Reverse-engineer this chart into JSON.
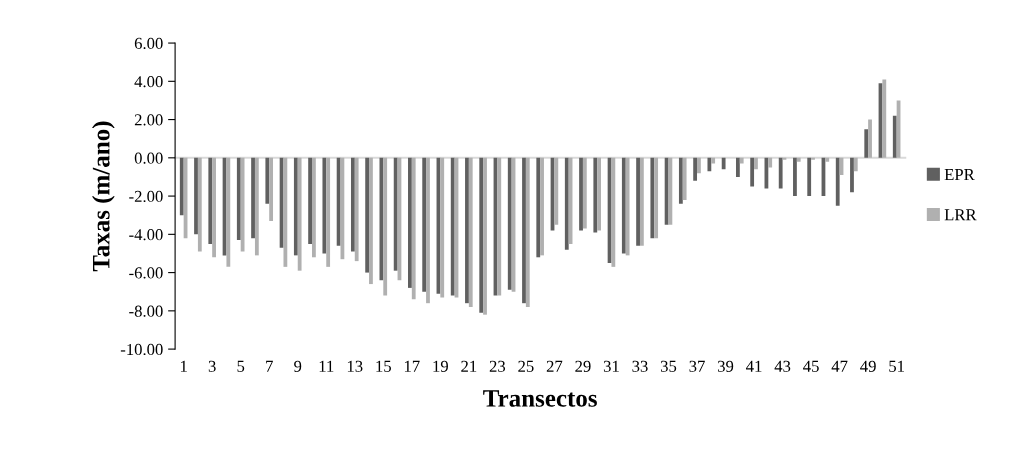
{
  "chart_data": {
    "type": "bar",
    "xlabel": "Transectos",
    "ylabel": "Taxas (m/ano)",
    "categories": [
      "1",
      null,
      "3",
      null,
      "5",
      null,
      "7",
      null,
      "9",
      null,
      "11",
      null,
      "13",
      null,
      "15",
      null,
      "17",
      null,
      "19",
      null,
      "21",
      null,
      "23",
      null,
      "25",
      null,
      "27",
      null,
      "29",
      null,
      "31",
      null,
      "33",
      null,
      "35",
      null,
      "37",
      null,
      "39",
      null,
      "41",
      null,
      "43",
      null,
      "45",
      null,
      "47",
      null,
      "49",
      null,
      "51"
    ],
    "series": [
      {
        "name": "EPR",
        "color": "#606060",
        "values": [
          -3.0,
          -4.0,
          -4.5,
          -5.1,
          -4.3,
          -4.2,
          -2.4,
          -4.7,
          -5.1,
          -4.5,
          -5.0,
          -4.6,
          -4.9,
          -6.0,
          -6.4,
          -5.9,
          -6.8,
          -7.0,
          -7.1,
          -7.2,
          -7.6,
          -8.1,
          -7.2,
          -6.9,
          -7.6,
          -5.2,
          -3.8,
          -4.8,
          -3.8,
          -3.9,
          -5.5,
          -5.0,
          -4.6,
          -4.2,
          -3.5,
          -2.4,
          -1.2,
          -0.7,
          -0.6,
          -1.0,
          -1.5,
          -1.6,
          -1.6,
          -2.0,
          -2.0,
          -2.0,
          -2.5,
          -1.8,
          1.5,
          3.9,
          2.2
        ]
      },
      {
        "name": "LRR",
        "color": "#b0b0b0",
        "values": [
          -4.2,
          -4.9,
          -5.2,
          -5.7,
          -4.9,
          -5.1,
          -3.3,
          -5.7,
          -5.9,
          -5.2,
          -5.7,
          -5.3,
          -5.4,
          -6.6,
          -7.2,
          -6.4,
          -7.4,
          -7.6,
          -7.3,
          -7.3,
          -7.8,
          -8.2,
          -7.2,
          -7.0,
          -7.8,
          -5.1,
          -3.5,
          -4.5,
          -3.7,
          -3.8,
          -5.7,
          -5.1,
          -4.6,
          -4.2,
          -3.5,
          -2.2,
          -0.8,
          -0.3,
          0.0,
          -0.3,
          -0.6,
          -0.5,
          -0.1,
          -0.2,
          -0.1,
          -0.2,
          -0.9,
          -0.7,
          2.0,
          4.1,
          3.0
        ]
      }
    ],
    "ylim": [
      -10,
      6
    ],
    "yticks": [
      {
        "value": -10,
        "label": "-10.00"
      },
      {
        "value": -8,
        "label": "-8.00"
      },
      {
        "value": -6,
        "label": "-6.00"
      },
      {
        "value": -4,
        "label": "-4.00"
      },
      {
        "value": -2,
        "label": "-2.00"
      },
      {
        "value": 0,
        "label": "0.00"
      },
      {
        "value": 2,
        "label": "2.00"
      },
      {
        "value": 4,
        "label": "4.00"
      },
      {
        "value": 6,
        "label": "6.00"
      }
    ],
    "legend": "right"
  }
}
